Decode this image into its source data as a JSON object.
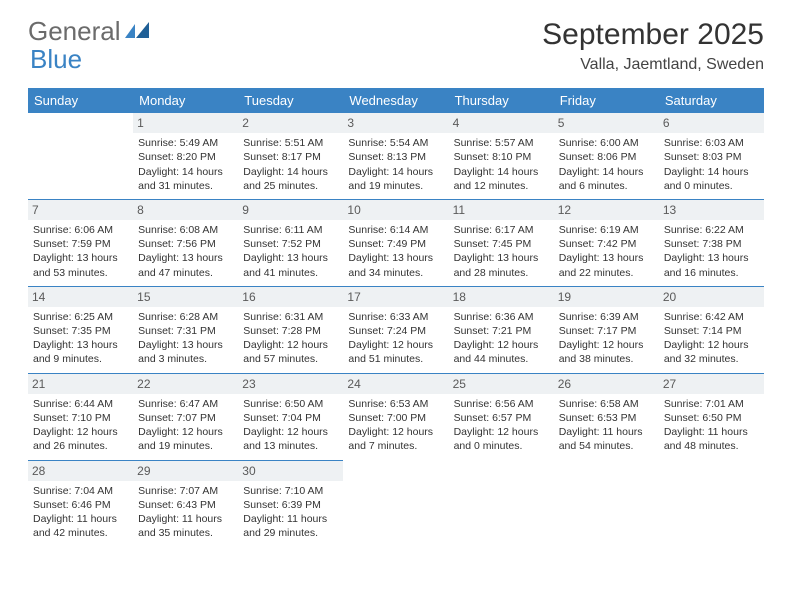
{
  "brand": {
    "word1": "General",
    "word2": "Blue"
  },
  "header": {
    "month_title": "September 2025",
    "location": "Valla, Jaemtland, Sweden"
  },
  "colors": {
    "accent": "#3a83c4",
    "header_row_bg": "#3a83c4",
    "header_row_text": "#ffffff",
    "daynum_bg": "#eef1f3",
    "cell_border": "#3a83c4",
    "body_text": "#333333",
    "logo_gray": "#6b6b6b"
  },
  "weekdays": [
    "Sunday",
    "Monday",
    "Tuesday",
    "Wednesday",
    "Thursday",
    "Friday",
    "Saturday"
  ],
  "weeks": [
    [
      null,
      {
        "n": "1",
        "sunrise": "Sunrise: 5:49 AM",
        "sunset": "Sunset: 8:20 PM",
        "daylight": "Daylight: 14 hours and 31 minutes."
      },
      {
        "n": "2",
        "sunrise": "Sunrise: 5:51 AM",
        "sunset": "Sunset: 8:17 PM",
        "daylight": "Daylight: 14 hours and 25 minutes."
      },
      {
        "n": "3",
        "sunrise": "Sunrise: 5:54 AM",
        "sunset": "Sunset: 8:13 PM",
        "daylight": "Daylight: 14 hours and 19 minutes."
      },
      {
        "n": "4",
        "sunrise": "Sunrise: 5:57 AM",
        "sunset": "Sunset: 8:10 PM",
        "daylight": "Daylight: 14 hours and 12 minutes."
      },
      {
        "n": "5",
        "sunrise": "Sunrise: 6:00 AM",
        "sunset": "Sunset: 8:06 PM",
        "daylight": "Daylight: 14 hours and 6 minutes."
      },
      {
        "n": "6",
        "sunrise": "Sunrise: 6:03 AM",
        "sunset": "Sunset: 8:03 PM",
        "daylight": "Daylight: 14 hours and 0 minutes."
      }
    ],
    [
      {
        "n": "7",
        "sunrise": "Sunrise: 6:06 AM",
        "sunset": "Sunset: 7:59 PM",
        "daylight": "Daylight: 13 hours and 53 minutes."
      },
      {
        "n": "8",
        "sunrise": "Sunrise: 6:08 AM",
        "sunset": "Sunset: 7:56 PM",
        "daylight": "Daylight: 13 hours and 47 minutes."
      },
      {
        "n": "9",
        "sunrise": "Sunrise: 6:11 AM",
        "sunset": "Sunset: 7:52 PM",
        "daylight": "Daylight: 13 hours and 41 minutes."
      },
      {
        "n": "10",
        "sunrise": "Sunrise: 6:14 AM",
        "sunset": "Sunset: 7:49 PM",
        "daylight": "Daylight: 13 hours and 34 minutes."
      },
      {
        "n": "11",
        "sunrise": "Sunrise: 6:17 AM",
        "sunset": "Sunset: 7:45 PM",
        "daylight": "Daylight: 13 hours and 28 minutes."
      },
      {
        "n": "12",
        "sunrise": "Sunrise: 6:19 AM",
        "sunset": "Sunset: 7:42 PM",
        "daylight": "Daylight: 13 hours and 22 minutes."
      },
      {
        "n": "13",
        "sunrise": "Sunrise: 6:22 AM",
        "sunset": "Sunset: 7:38 PM",
        "daylight": "Daylight: 13 hours and 16 minutes."
      }
    ],
    [
      {
        "n": "14",
        "sunrise": "Sunrise: 6:25 AM",
        "sunset": "Sunset: 7:35 PM",
        "daylight": "Daylight: 13 hours and 9 minutes."
      },
      {
        "n": "15",
        "sunrise": "Sunrise: 6:28 AM",
        "sunset": "Sunset: 7:31 PM",
        "daylight": "Daylight: 13 hours and 3 minutes."
      },
      {
        "n": "16",
        "sunrise": "Sunrise: 6:31 AM",
        "sunset": "Sunset: 7:28 PM",
        "daylight": "Daylight: 12 hours and 57 minutes."
      },
      {
        "n": "17",
        "sunrise": "Sunrise: 6:33 AM",
        "sunset": "Sunset: 7:24 PM",
        "daylight": "Daylight: 12 hours and 51 minutes."
      },
      {
        "n": "18",
        "sunrise": "Sunrise: 6:36 AM",
        "sunset": "Sunset: 7:21 PM",
        "daylight": "Daylight: 12 hours and 44 minutes."
      },
      {
        "n": "19",
        "sunrise": "Sunrise: 6:39 AM",
        "sunset": "Sunset: 7:17 PM",
        "daylight": "Daylight: 12 hours and 38 minutes."
      },
      {
        "n": "20",
        "sunrise": "Sunrise: 6:42 AM",
        "sunset": "Sunset: 7:14 PM",
        "daylight": "Daylight: 12 hours and 32 minutes."
      }
    ],
    [
      {
        "n": "21",
        "sunrise": "Sunrise: 6:44 AM",
        "sunset": "Sunset: 7:10 PM",
        "daylight": "Daylight: 12 hours and 26 minutes."
      },
      {
        "n": "22",
        "sunrise": "Sunrise: 6:47 AM",
        "sunset": "Sunset: 7:07 PM",
        "daylight": "Daylight: 12 hours and 19 minutes."
      },
      {
        "n": "23",
        "sunrise": "Sunrise: 6:50 AM",
        "sunset": "Sunset: 7:04 PM",
        "daylight": "Daylight: 12 hours and 13 minutes."
      },
      {
        "n": "24",
        "sunrise": "Sunrise: 6:53 AM",
        "sunset": "Sunset: 7:00 PM",
        "daylight": "Daylight: 12 hours and 7 minutes."
      },
      {
        "n": "25",
        "sunrise": "Sunrise: 6:56 AM",
        "sunset": "Sunset: 6:57 PM",
        "daylight": "Daylight: 12 hours and 0 minutes."
      },
      {
        "n": "26",
        "sunrise": "Sunrise: 6:58 AM",
        "sunset": "Sunset: 6:53 PM",
        "daylight": "Daylight: 11 hours and 54 minutes."
      },
      {
        "n": "27",
        "sunrise": "Sunrise: 7:01 AM",
        "sunset": "Sunset: 6:50 PM",
        "daylight": "Daylight: 11 hours and 48 minutes."
      }
    ],
    [
      {
        "n": "28",
        "sunrise": "Sunrise: 7:04 AM",
        "sunset": "Sunset: 6:46 PM",
        "daylight": "Daylight: 11 hours and 42 minutes."
      },
      {
        "n": "29",
        "sunrise": "Sunrise: 7:07 AM",
        "sunset": "Sunset: 6:43 PM",
        "daylight": "Daylight: 11 hours and 35 minutes."
      },
      {
        "n": "30",
        "sunrise": "Sunrise: 7:10 AM",
        "sunset": "Sunset: 6:39 PM",
        "daylight": "Daylight: 11 hours and 29 minutes."
      },
      null,
      null,
      null,
      null
    ]
  ]
}
